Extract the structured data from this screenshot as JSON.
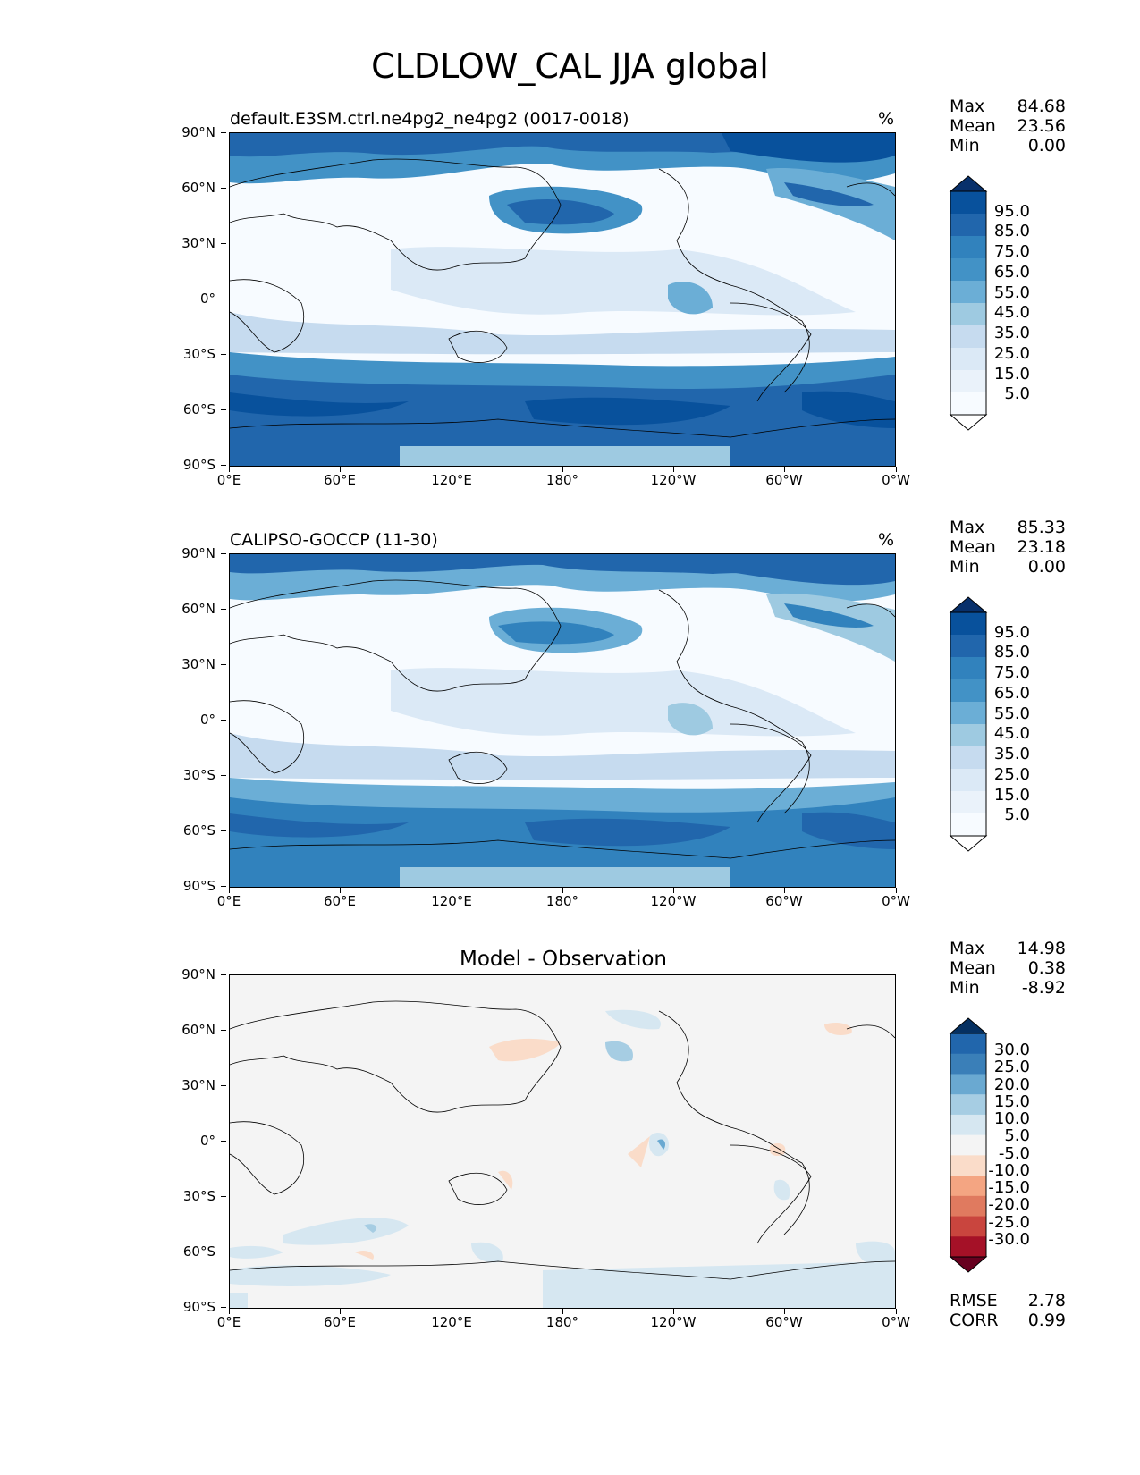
{
  "title": "CLDLOW_CAL JJA global",
  "x_ticks": [
    "0°E",
    "60°E",
    "120°E",
    "180°",
    "120°W",
    "60°W",
    "0°W"
  ],
  "y_ticks": [
    "90°N",
    "60°N",
    "30°N",
    "0°",
    "30°S",
    "60°S",
    "90°S"
  ],
  "panels": [
    {
      "title_left": "default.E3SM.ctrl.ne4pg2_ne4pg2 (0017-0018)",
      "units": "%",
      "stats": {
        "max_label": "Max",
        "max": "84.68",
        "mean_label": "Mean",
        "mean": "23.56",
        "min_label": "Min",
        "min": "0.00"
      },
      "colorbar_labels": [
        "95.0",
        "85.0",
        "75.0",
        "65.0",
        "55.0",
        "45.0",
        "35.0",
        "25.0",
        "15.0",
        "5.0"
      ],
      "colorbar_colors": [
        "#08306b",
        "#08519c",
        "#2166ac",
        "#3182bd",
        "#4292c6",
        "#6baed6",
        "#9ecae1",
        "#c6dbef",
        "#dbe9f6",
        "#eaf2fa",
        "#f7fbff",
        "#ffffff"
      ]
    },
    {
      "title_left": "CALIPSO-GOCCP (11-30)",
      "units": "%",
      "stats": {
        "max_label": "Max",
        "max": "85.33",
        "mean_label": "Mean",
        "mean": "23.18",
        "min_label": "Min",
        "min": "0.00"
      },
      "colorbar_labels": [
        "95.0",
        "85.0",
        "75.0",
        "65.0",
        "55.0",
        "45.0",
        "35.0",
        "25.0",
        "15.0",
        "5.0"
      ],
      "colorbar_colors": [
        "#08306b",
        "#08519c",
        "#2166ac",
        "#3182bd",
        "#4292c6",
        "#6baed6",
        "#9ecae1",
        "#c6dbef",
        "#dbe9f6",
        "#eaf2fa",
        "#f7fbff",
        "#ffffff"
      ]
    },
    {
      "title_center": "Model - Observation",
      "stats": {
        "max_label": "Max",
        "max": "14.98",
        "mean_label": "Mean",
        "mean": "0.38",
        "min_label": "Min",
        "min": "-8.92"
      },
      "colorbar_labels": [
        "30.0",
        "25.0",
        "20.0",
        "15.0",
        "10.0",
        "5.0",
        "-5.0",
        "-10.0",
        "-15.0",
        "-20.0",
        "-25.0",
        "-30.0"
      ],
      "colorbar_colors": [
        "#053061",
        "#2166ac",
        "#3a7fb8",
        "#6aa9d1",
        "#a6cde3",
        "#d6e7f1",
        "#f4f4f4",
        "#fadcc9",
        "#f4a582",
        "#e07a5f",
        "#c9453e",
        "#a51127",
        "#67001f"
      ],
      "rmse_label": "RMSE",
      "rmse": "2.78",
      "corr_label": "CORR",
      "corr": "0.99"
    }
  ]
}
